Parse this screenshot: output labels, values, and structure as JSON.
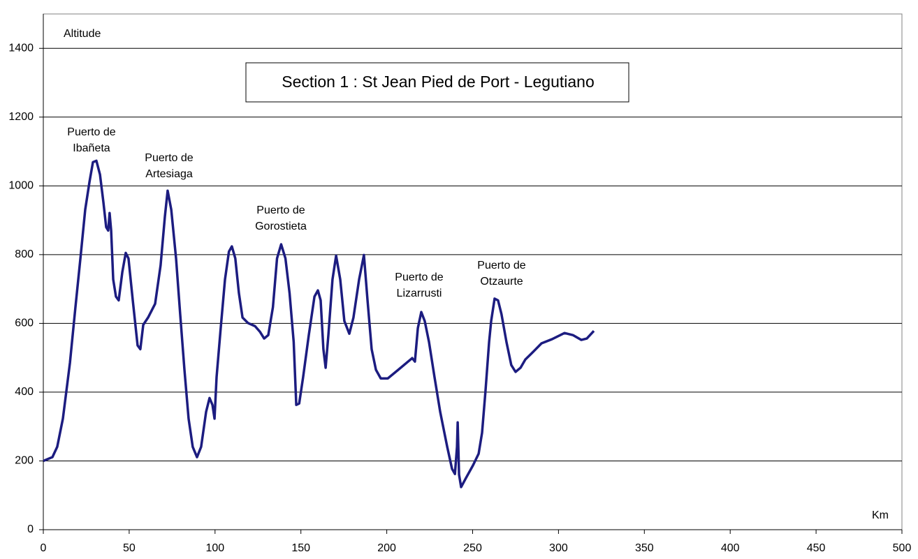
{
  "chart_data": {
    "type": "line",
    "title": "Section 1 : St Jean Pied de Port - Legutiano",
    "y_label": "Altitude",
    "x_label": "Km",
    "annotations": [
      [
        "Puerto de",
        "Ibañeta"
      ],
      [
        "Puerto de",
        "Artesiaga"
      ],
      [
        "Puerto de",
        "Gorostieta"
      ],
      [
        "Puerto de",
        "Lizarrusti"
      ],
      [
        "Puerto de",
        "Otzaurte"
      ]
    ],
    "xlim": [
      0,
      500
    ],
    "xticks": [
      0,
      50,
      100,
      150,
      200,
      250,
      300,
      350,
      400,
      450,
      500
    ],
    "ylim": [
      0,
      1500
    ],
    "yticks": [
      0,
      200,
      400,
      600,
      800,
      1000,
      1200,
      1400
    ],
    "grid": true,
    "series": [
      {
        "color": "#1c1c80",
        "x": [
          0,
          5.3,
          8.1,
          11.4,
          15.5,
          18.7,
          21.6,
          24.4,
          26.9,
          28.9,
          30.9,
          33,
          35,
          36.6,
          37.8,
          38.6,
          39.5,
          40.7,
          42.3,
          43.9,
          46,
          48,
          49.6,
          52.1,
          54.9,
          56.5,
          58.2,
          61,
          65.1,
          68.3,
          70.8,
          72.4,
          74.5,
          77.3,
          79.7,
          82.2,
          84.6,
          87,
          89.5,
          91.9,
          94.8,
          96.8,
          98.5,
          99.7,
          100.9,
          103.3,
          105.8,
          108.1,
          109.8,
          111.8,
          113.9,
          116,
          119.2,
          123.3,
          126.1,
          128.6,
          131,
          133.7,
          136.1,
          138.5,
          141,
          143.4,
          145.8,
          147.3,
          149,
          151.3,
          154.6,
          157.9,
          159.9,
          161.5,
          163.1,
          164.4,
          166,
          168.4,
          170.5,
          172.9,
          175.3,
          178.2,
          180.6,
          183.9,
          186.7,
          188.8,
          191.2,
          193.7,
          196.5,
          200.6,
          206.7,
          214.8,
          216.4,
          218.1,
          220.1,
          222.1,
          224.6,
          227.8,
          231.1,
          235.2,
          238,
          239.7,
          240.9,
          241.3,
          242.1,
          243.3,
          246.1,
          250.2,
          253.5,
          255.5,
          257.5,
          259.6,
          260.8,
          262.8,
          264.8,
          266.8,
          269.7,
          272.5,
          275,
          277.9,
          280.7,
          284.8,
          290.1,
          296.2,
          303.5,
          308.4,
          313.3,
          316.5,
          320.6
        ],
        "values": [
          200,
          211,
          241,
          323,
          485,
          647,
          789,
          931,
          1012,
          1069,
          1073,
          1033,
          952,
          880,
          870,
          921,
          870,
          728,
          678,
          667,
          749,
          805,
          789,
          667,
          536,
          525,
          596,
          617,
          657,
          769,
          911,
          986,
          931,
          789,
          627,
          464,
          323,
          241,
          211,
          241,
          343,
          383,
          363,
          323,
          444,
          586,
          728,
          809,
          824,
          789,
          688,
          617,
          601,
          592,
          576,
          556,
          566,
          647,
          789,
          830,
          789,
          688,
          546,
          363,
          367,
          444,
          566,
          678,
          696,
          667,
          525,
          471,
          566,
          728,
          797,
          728,
          607,
          570,
          617,
          728,
          799,
          667,
          525,
          465,
          440,
          440,
          465,
          499,
          489,
          586,
          633,
          607,
          546,
          444,
          343,
          241,
          177,
          162,
          241,
          312,
          160,
          124,
          150,
          187,
          221,
          282,
          404,
          546,
          607,
          672,
          667,
          627,
          546,
          479,
          459,
          471,
          495,
          515,
          542,
          554,
          572,
          566,
          552,
          556,
          578
        ]
      }
    ]
  }
}
